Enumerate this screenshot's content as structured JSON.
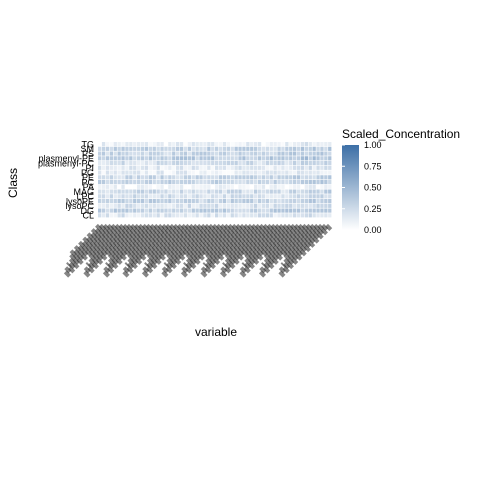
{
  "chart_data": {
    "type": "heatmap",
    "title": "",
    "xlabel": "variable",
    "ylabel": "Class",
    "y_categories": [
      "TG",
      "SM",
      "PS",
      "plasmenyl-PE",
      "plasmenyl-PC",
      "PI",
      "PG",
      "PE",
      "PC",
      "PA",
      "MAG",
      "LPC",
      "lysoPE",
      "lysoPC",
      "DG",
      "CL"
    ],
    "legend": {
      "title": "Scaled_Concentration",
      "ticks": [
        "0.00",
        "0.25",
        "0.50",
        "0.75",
        "1.00"
      ],
      "low_color": "#ffffff",
      "high_color": "#3c6fa6",
      "position": "right"
    },
    "x_count": 60,
    "x_tick_note": "x tick labels are overlapping sample identifiers, unreadable",
    "row_levels": [
      0.1,
      0.3,
      0.28,
      0.35,
      0.22,
      0.15,
      0.12,
      0.28,
      0.3,
      0.05,
      0.25,
      0.22,
      0.3,
      0.2,
      0.33,
      0.18
    ],
    "value_range": [
      0,
      1
    ]
  }
}
